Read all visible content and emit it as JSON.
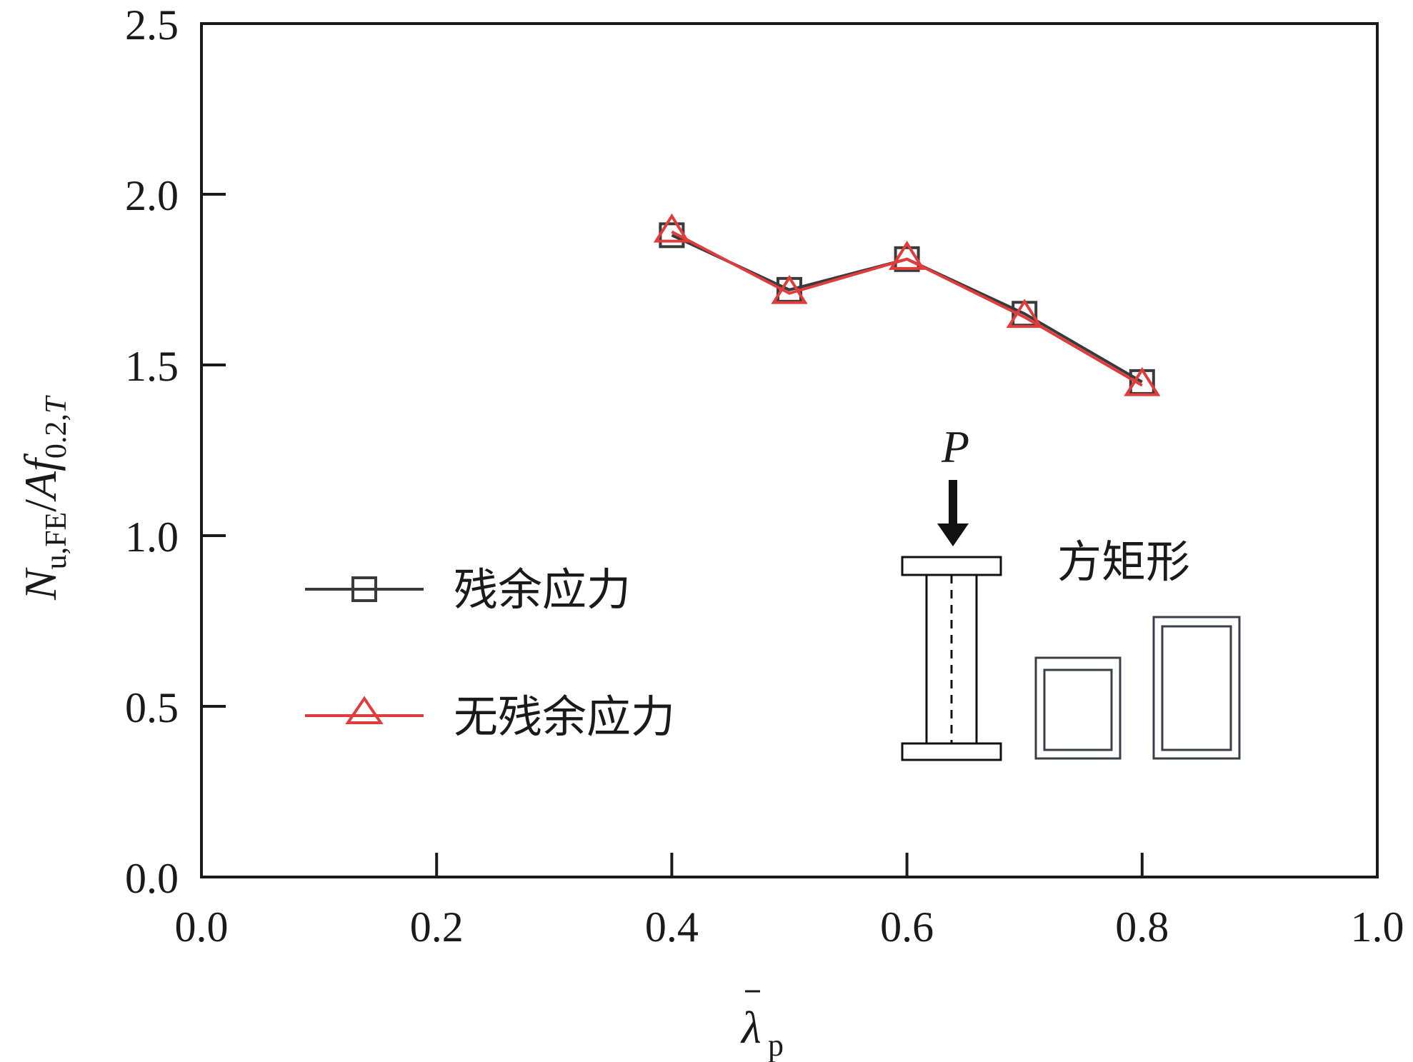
{
  "chart_data": {
    "type": "line",
    "xlabel": "λp",
    "ylabel": "Nu,FE/Af0.2,T",
    "x_ticks": [
      "0.0",
      "0.2",
      "0.4",
      "0.6",
      "0.8",
      "1.0"
    ],
    "y_ticks": [
      "0.0",
      "0.5",
      "1.0",
      "1.5",
      "2.0",
      "2.5"
    ],
    "xlim": [
      0,
      1.0
    ],
    "ylim": [
      0,
      2.5
    ],
    "grid": false,
    "legend_position": "center-left",
    "x": [
      0.4,
      0.5,
      0.6,
      0.7,
      0.8
    ],
    "series": [
      {
        "name": "残余应力",
        "marker": "square",
        "color": "#3a3a3a",
        "values": [
          1.88,
          1.72,
          1.81,
          1.65,
          1.45
        ]
      },
      {
        "name": "无残余应力",
        "marker": "triangle",
        "color": "#e03c3c",
        "values": [
          1.89,
          1.71,
          1.81,
          1.64,
          1.44
        ]
      }
    ]
  },
  "inset": {
    "load_label": "P",
    "section_label": "方矩形"
  }
}
